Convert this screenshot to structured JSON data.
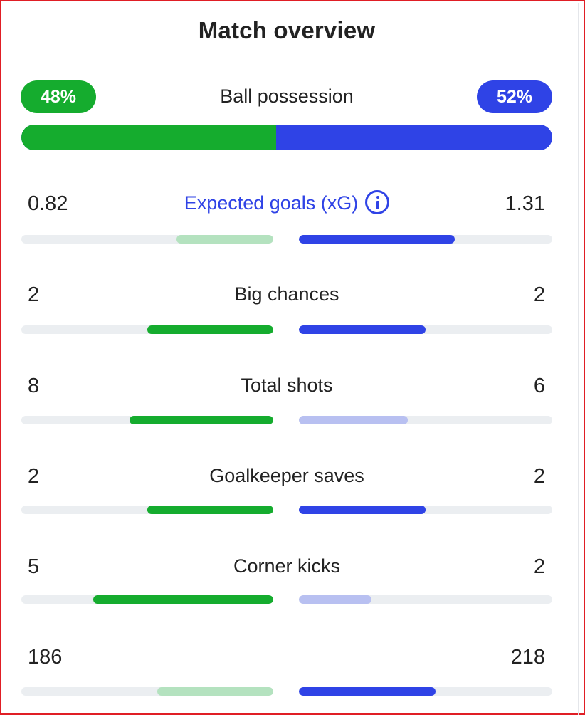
{
  "title": "Match overview",
  "possession": {
    "label": "Ball possession",
    "home": {
      "text": "48%",
      "value": 48,
      "color": "#15ac2e"
    },
    "away": {
      "text": "52%",
      "value": 52,
      "color": "#2f43e6"
    }
  },
  "colors": {
    "home": "#15ac2e",
    "home_light": "#b4e2bf",
    "away": "#2f43e6",
    "away_light": "#b8c0f1",
    "track": "#ebeef1"
  },
  "stats": [
    {
      "label": "Expected goals (xG)",
      "home": "0.82",
      "away": "1.31",
      "home_value": 0.82,
      "away_value": 1.31,
      "has_info_icon": true,
      "info_icon": "info-icon",
      "highlight": "away",
      "link": true
    },
    {
      "label": "Big chances",
      "home": "2",
      "away": "2",
      "home_value": 2,
      "away_value": 2,
      "highlight": "both"
    },
    {
      "label": "Total shots",
      "home": "8",
      "away": "6",
      "home_value": 8,
      "away_value": 6,
      "highlight": "home"
    },
    {
      "label": "Goalkeeper saves",
      "home": "2",
      "away": "2",
      "home_value": 2,
      "away_value": 2,
      "highlight": "both"
    },
    {
      "label": "Corner kicks",
      "home": "5",
      "away": "2",
      "home_value": 5,
      "away_value": 2,
      "highlight": "home"
    },
    {
      "label": "",
      "home": "186",
      "away": "218",
      "home_value": 186,
      "away_value": 218,
      "highlight": "away"
    }
  ]
}
